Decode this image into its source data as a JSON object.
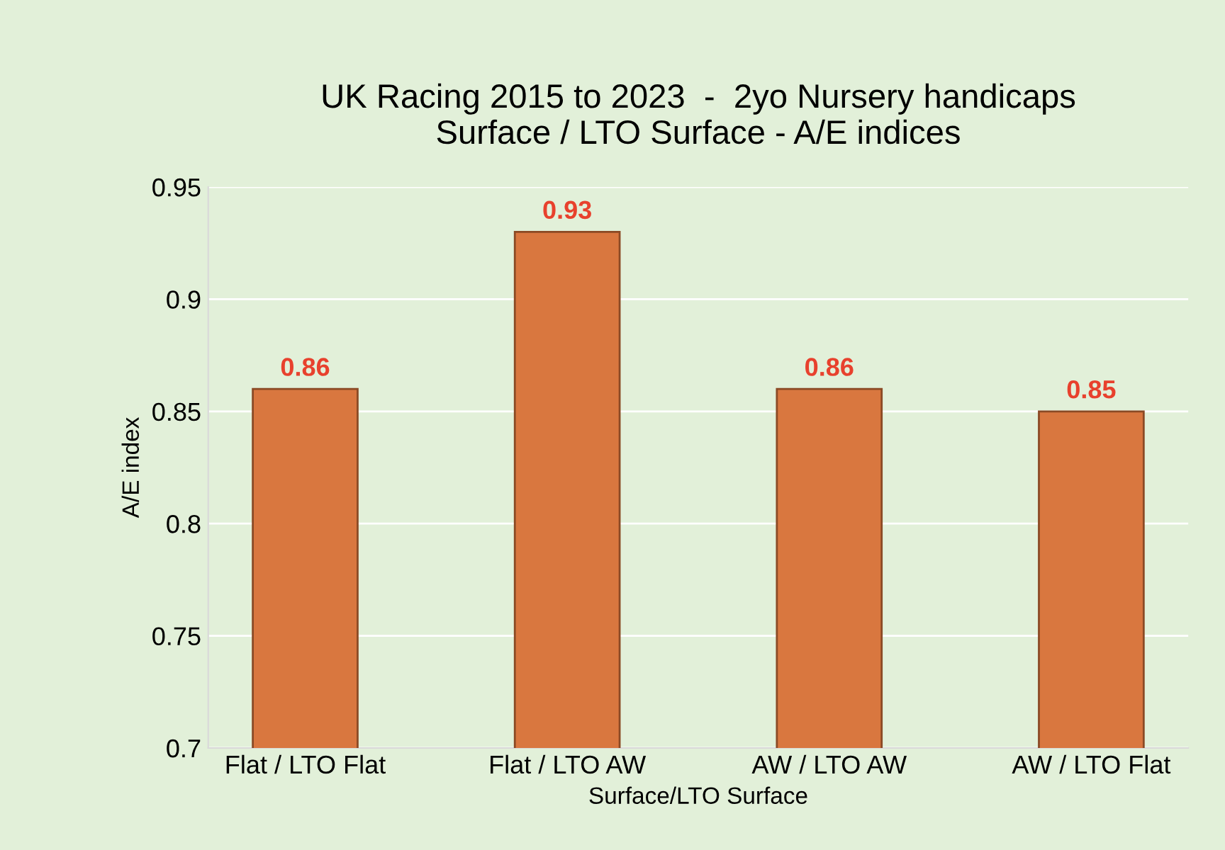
{
  "chart_data": {
    "type": "bar",
    "title": "UK Racing 2015 to 2023  -  2yo Nursery handicaps\nSurface / LTO Surface - A/E indices",
    "xlabel": "Surface/LTO Surface",
    "ylabel": "A/E index",
    "categories": [
      "Flat / LTO Flat",
      "Flat / LTO AW",
      "AW / LTO AW",
      "AW / LTO Flat"
    ],
    "values": [
      0.86,
      0.93,
      0.86,
      0.85
    ],
    "color": "#d9773f",
    "ylim": [
      0.7,
      0.95
    ],
    "yticks": [
      0.7,
      0.75,
      0.8,
      0.85,
      0.9,
      0.95
    ],
    "grid": "y",
    "data_labels": true
  }
}
